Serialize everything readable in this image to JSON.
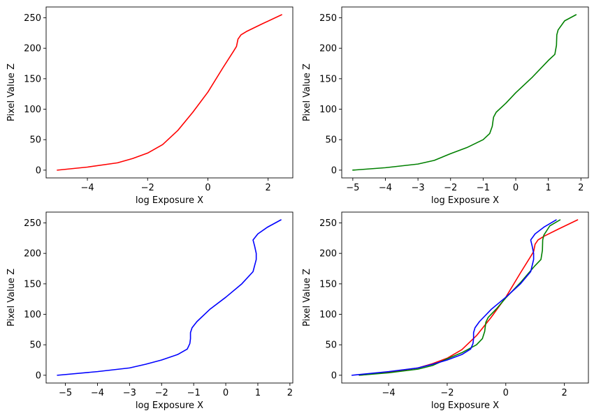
{
  "chart_data": [
    {
      "type": "line",
      "xlabel": "log Exposure X",
      "ylabel": "Pixel Value Z",
      "xlim": [
        -5.37,
        2.82
      ],
      "ylim": [
        -12.75,
        267.75
      ],
      "xticks": [
        -4,
        -2,
        0,
        2
      ],
      "xtick_labels": [
        "−4",
        "−2",
        "0",
        "2"
      ],
      "yticks": [
        0,
        50,
        100,
        150,
        200,
        250
      ],
      "ytick_labels": [
        "0",
        "50",
        "100",
        "150",
        "200",
        "250"
      ],
      "series": [
        {
          "color": "#ff0000",
          "x": [
            -5.0,
            -4.0,
            -3.0,
            -2.5,
            -2.0,
            -1.5,
            -1.0,
            -0.5,
            0.0,
            0.5,
            0.85,
            0.95,
            1.0,
            1.1,
            1.3,
            1.8,
            2.45
          ],
          "y": [
            0,
            5,
            12,
            19,
            28,
            42,
            65,
            95,
            128,
            168,
            195,
            203,
            215,
            222,
            228,
            240,
            255
          ]
        }
      ]
    },
    {
      "type": "line",
      "xlabel": "log Exposure X",
      "ylabel": "Pixel Value Z",
      "xlim": [
        -5.34,
        2.23
      ],
      "ylim": [
        -12.75,
        267.75
      ],
      "xticks": [
        -5,
        -4,
        -3,
        -2,
        -1,
        0,
        1,
        2
      ],
      "xtick_labels": [
        "−5",
        "−4",
        "−3",
        "−2",
        "−1",
        "0",
        "1",
        "2"
      ],
      "yticks": [
        0,
        50,
        100,
        150,
        200,
        250
      ],
      "ytick_labels": [
        "0",
        "50",
        "100",
        "150",
        "200",
        "250"
      ],
      "series": [
        {
          "color": "#008000",
          "x": [
            -5.0,
            -4.0,
            -3.0,
            -2.5,
            -2.0,
            -1.5,
            -1.0,
            -0.8,
            -0.72,
            -0.7,
            -0.68,
            -0.6,
            -0.3,
            0.0,
            0.5,
            1.0,
            1.2,
            1.25,
            1.26,
            1.3,
            1.5,
            1.85
          ],
          "y": [
            0,
            4,
            10,
            16,
            27,
            37,
            50,
            60,
            72,
            80,
            87,
            95,
            110,
            127,
            152,
            180,
            190,
            205,
            222,
            230,
            245,
            255
          ]
        }
      ]
    },
    {
      "type": "line",
      "xlabel": "log Exposure X",
      "ylabel": "Pixel Value Z",
      "xlim": [
        -5.6,
        2.09
      ],
      "ylim": [
        -12.75,
        267.75
      ],
      "xticks": [
        -5,
        -4,
        -3,
        -2,
        -1,
        0,
        1,
        2
      ],
      "xtick_labels": [
        "−5",
        "−4",
        "−3",
        "−2",
        "−1",
        "0",
        "1",
        "2"
      ],
      "yticks": [
        0,
        50,
        100,
        150,
        200,
        250
      ],
      "ytick_labels": [
        "0",
        "50",
        "100",
        "150",
        "200",
        "250"
      ],
      "series": [
        {
          "color": "#0000ff",
          "x": [
            -5.25,
            -4.0,
            -3.0,
            -2.5,
            -2.0,
            -1.5,
            -1.2,
            -1.12,
            -1.1,
            -1.1,
            -1.05,
            -0.9,
            -0.5,
            0.0,
            0.5,
            0.85,
            0.95,
            0.95,
            0.9,
            0.85,
            1.0,
            1.3,
            1.72
          ],
          "y": [
            0,
            6,
            12,
            18,
            25,
            34,
            43,
            52,
            60,
            70,
            78,
            88,
            108,
            128,
            150,
            170,
            190,
            200,
            212,
            222,
            232,
            243,
            255
          ]
        }
      ]
    },
    {
      "type": "line",
      "xlabel": "log Exposure X",
      "ylabel": "Pixel Value Z",
      "xlim": [
        -5.6,
        2.82
      ],
      "ylim": [
        -12.75,
        267.75
      ],
      "xticks": [
        -4,
        -2,
        0,
        2
      ],
      "xtick_labels": [
        "−4",
        "−2",
        "0",
        "2"
      ],
      "yticks": [
        0,
        50,
        100,
        150,
        200,
        250
      ],
      "ytick_labels": [
        "0",
        "50",
        "100",
        "150",
        "200",
        "250"
      ],
      "series": [
        {
          "color": "#ff0000",
          "x": [
            -5.0,
            -4.0,
            -3.0,
            -2.5,
            -2.0,
            -1.5,
            -1.0,
            -0.5,
            0.0,
            0.5,
            0.85,
            0.95,
            1.0,
            1.1,
            1.3,
            1.8,
            2.45
          ],
          "y": [
            0,
            5,
            12,
            19,
            28,
            42,
            65,
            95,
            128,
            168,
            195,
            203,
            215,
            222,
            228,
            240,
            255
          ]
        },
        {
          "color": "#008000",
          "x": [
            -5.0,
            -4.0,
            -3.0,
            -2.5,
            -2.0,
            -1.5,
            -1.0,
            -0.8,
            -0.72,
            -0.7,
            -0.68,
            -0.6,
            -0.3,
            0.0,
            0.5,
            1.0,
            1.2,
            1.25,
            1.26,
            1.3,
            1.5,
            1.85
          ],
          "y": [
            0,
            4,
            10,
            16,
            27,
            37,
            50,
            60,
            72,
            80,
            87,
            95,
            110,
            127,
            152,
            180,
            190,
            205,
            222,
            230,
            245,
            255
          ]
        },
        {
          "color": "#0000ff",
          "x": [
            -5.25,
            -4.0,
            -3.0,
            -2.5,
            -2.0,
            -1.5,
            -1.2,
            -1.12,
            -1.1,
            -1.1,
            -1.05,
            -0.9,
            -0.5,
            0.0,
            0.5,
            0.85,
            0.95,
            0.95,
            0.9,
            0.85,
            1.0,
            1.3,
            1.72
          ],
          "y": [
            0,
            6,
            12,
            18,
            25,
            34,
            43,
            52,
            60,
            70,
            78,
            88,
            108,
            128,
            150,
            170,
            190,
            200,
            212,
            222,
            232,
            243,
            255
          ]
        }
      ]
    }
  ]
}
